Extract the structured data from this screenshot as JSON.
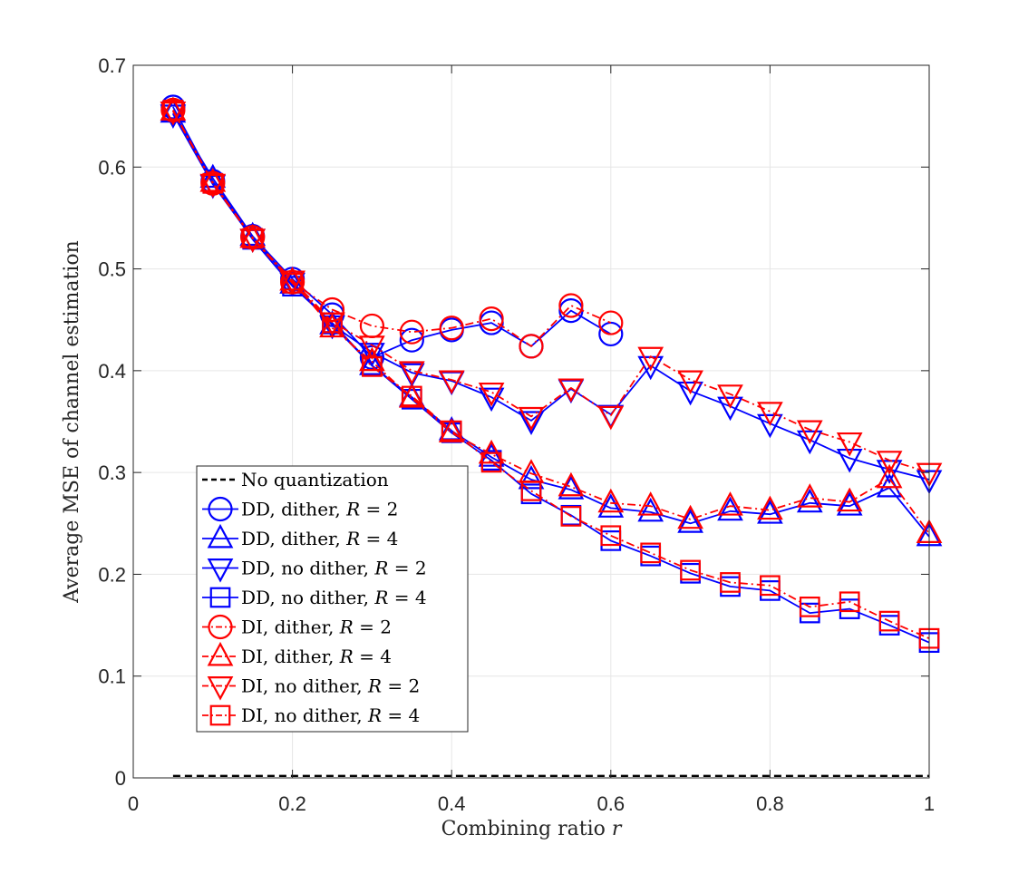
{
  "chart_data": {
    "type": "line",
    "title": "",
    "xlabel": "Combining ratio r",
    "ylabel": "Average MSE of channel estimation",
    "xlim": [
      0,
      1
    ],
    "ylim": [
      0,
      0.7
    ],
    "xticks": [
      "0",
      "0.2",
      "0.4",
      "0.6",
      "0.8",
      "1"
    ],
    "yticks": [
      "0",
      "0.1",
      "0.2",
      "0.3",
      "0.4",
      "0.5",
      "0.6",
      "0.7"
    ],
    "grid": true,
    "legend_position": "lower-left",
    "series": [
      {
        "name": "No quantization",
        "color": "#000000",
        "marker": "none",
        "dash": "dashed",
        "x": [
          0.05,
          1
        ],
        "values": [
          0.002,
          0.002
        ]
      },
      {
        "name": "DD, dither, R = 2",
        "color": "#0000ff",
        "marker": "circle",
        "dash": "solid",
        "x": [
          0.05,
          0.1,
          0.15,
          0.2,
          0.25,
          0.3,
          0.35,
          0.4,
          0.45,
          0.5,
          0.55,
          0.6
        ],
        "values": [
          0.659,
          0.586,
          0.532,
          0.49,
          0.455,
          0.413,
          0.43,
          0.44,
          0.447,
          0.424,
          0.459,
          0.436
        ]
      },
      {
        "name": "DD, dither, R = 4",
        "color": "#0000ff",
        "marker": "triangle-up",
        "dash": "solid",
        "x": [
          0.05,
          0.1,
          0.15,
          0.2,
          0.25,
          0.3,
          0.35,
          0.4,
          0.45,
          0.5,
          0.55,
          0.6,
          0.65,
          0.7,
          0.75,
          0.8,
          0.85,
          0.9,
          0.95,
          1.0
        ],
        "values": [
          0.653,
          0.589,
          0.532,
          0.485,
          0.445,
          0.405,
          0.374,
          0.341,
          0.315,
          0.293,
          0.283,
          0.265,
          0.261,
          0.25,
          0.262,
          0.259,
          0.27,
          0.267,
          0.285,
          0.237
        ]
      },
      {
        "name": "DD, no dither, R = 2",
        "color": "#0000ff",
        "marker": "triangle-down",
        "dash": "solid",
        "x": [
          0.05,
          0.1,
          0.15,
          0.2,
          0.25,
          0.3,
          0.35,
          0.4,
          0.45,
          0.5,
          0.55,
          0.6,
          0.65,
          0.7,
          0.75,
          0.8,
          0.85,
          0.9,
          0.95,
          1.0
        ],
        "values": [
          0.652,
          0.583,
          0.53,
          0.487,
          0.445,
          0.418,
          0.398,
          0.39,
          0.374,
          0.351,
          0.382,
          0.357,
          0.405,
          0.38,
          0.365,
          0.348,
          0.332,
          0.314,
          0.303,
          0.293
        ]
      },
      {
        "name": "DD, no dither, R = 4",
        "color": "#0000ff",
        "marker": "square",
        "dash": "solid",
        "x": [
          0.05,
          0.1,
          0.15,
          0.2,
          0.25,
          0.3,
          0.35,
          0.4,
          0.45,
          0.5,
          0.55,
          0.6,
          0.65,
          0.7,
          0.75,
          0.8,
          0.85,
          0.9,
          0.95,
          1.0
        ],
        "values": [
          0.655,
          0.584,
          0.529,
          0.483,
          0.447,
          0.405,
          0.372,
          0.339,
          0.312,
          0.279,
          0.258,
          0.233,
          0.218,
          0.201,
          0.188,
          0.184,
          0.162,
          0.166,
          0.15,
          0.133
        ]
      },
      {
        "name": "DI, dither, R = 2",
        "color": "#ff0000",
        "marker": "circle",
        "dash": "dashdot",
        "x": [
          0.05,
          0.1,
          0.15,
          0.2,
          0.25,
          0.3,
          0.35,
          0.4,
          0.45,
          0.5,
          0.55,
          0.6
        ],
        "values": [
          0.656,
          0.584,
          0.531,
          0.487,
          0.46,
          0.444,
          0.438,
          0.442,
          0.451,
          0.424,
          0.464,
          0.447
        ]
      },
      {
        "name": "DI, dither, R = 4",
        "color": "#ff0000",
        "marker": "triangle-up",
        "dash": "dashdot",
        "x": [
          0.05,
          0.1,
          0.15,
          0.2,
          0.25,
          0.3,
          0.35,
          0.4,
          0.45,
          0.5,
          0.55,
          0.6,
          0.65,
          0.7,
          0.75,
          0.8,
          0.85,
          0.9,
          0.95,
          1.0
        ],
        "values": [
          0.655,
          0.585,
          0.53,
          0.488,
          0.442,
          0.409,
          0.373,
          0.339,
          0.318,
          0.299,
          0.286,
          0.27,
          0.267,
          0.254,
          0.267,
          0.263,
          0.275,
          0.271,
          0.294,
          0.24
        ]
      },
      {
        "name": "DI, no dither, R = 2",
        "color": "#ff0000",
        "marker": "triangle-down",
        "dash": "dashdot",
        "x": [
          0.05,
          0.1,
          0.15,
          0.2,
          0.25,
          0.3,
          0.35,
          0.4,
          0.45,
          0.5,
          0.55,
          0.6,
          0.65,
          0.7,
          0.75,
          0.8,
          0.85,
          0.9,
          0.95,
          1.0
        ],
        "values": [
          0.655,
          0.584,
          0.53,
          0.489,
          0.448,
          0.425,
          0.4,
          0.391,
          0.379,
          0.355,
          0.383,
          0.356,
          0.414,
          0.391,
          0.377,
          0.36,
          0.342,
          0.33,
          0.312,
          0.3
        ]
      },
      {
        "name": "DI, no dither, R = 4",
        "color": "#ff0000",
        "marker": "square",
        "dash": "dashdot",
        "x": [
          0.05,
          0.1,
          0.15,
          0.2,
          0.25,
          0.3,
          0.35,
          0.4,
          0.45,
          0.5,
          0.55,
          0.6,
          0.65,
          0.7,
          0.75,
          0.8,
          0.85,
          0.9,
          0.95,
          1.0
        ],
        "values": [
          0.656,
          0.584,
          0.53,
          0.486,
          0.447,
          0.404,
          0.375,
          0.341,
          0.31,
          0.282,
          0.257,
          0.238,
          0.221,
          0.204,
          0.192,
          0.189,
          0.168,
          0.173,
          0.154,
          0.137
        ]
      }
    ]
  }
}
